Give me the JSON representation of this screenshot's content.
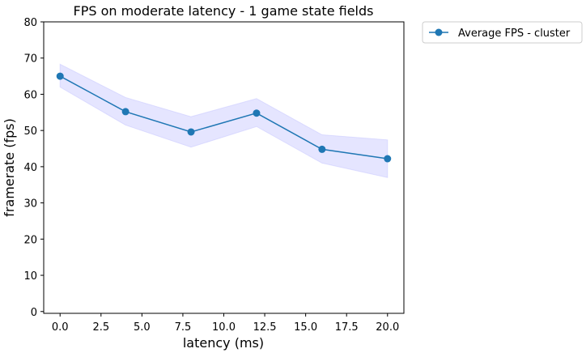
{
  "chart_data": {
    "type": "line",
    "title": "FPS on moderate latency - 1 game state fields",
    "xlabel": "latency (ms)",
    "ylabel": "framerate (fps)",
    "xlim": [
      -1,
      21
    ],
    "ylim": [
      -0.5,
      80
    ],
    "xticks": [
      0,
      2.5,
      5,
      7.5,
      10,
      12.5,
      15,
      17.5,
      20
    ],
    "xtick_labels": [
      "0.0",
      "2.5",
      "5.0",
      "7.5",
      "10.0",
      "12.5",
      "15.0",
      "17.5",
      "20.0"
    ],
    "yticks": [
      0,
      10,
      20,
      30,
      40,
      50,
      60,
      70,
      80
    ],
    "ytick_labels": [
      "0",
      "10",
      "20",
      "30",
      "40",
      "50",
      "60",
      "70",
      "80"
    ],
    "grid": false,
    "legend_position": "outside-top-right",
    "series": [
      {
        "name": "Average FPS - cluster",
        "color": "#1f77b4",
        "marker": "circle",
        "x": [
          0,
          4,
          8,
          12,
          16,
          20
        ],
        "y": [
          65,
          55.2,
          49.6,
          54.8,
          44.8,
          42.2
        ],
        "band_lower": [
          62,
          51.5,
          45.4,
          51.1,
          41,
          37
        ],
        "band_upper": [
          68.3,
          59.1,
          53.8,
          58.8,
          48.8,
          47.4
        ],
        "band_color": "#ccccff"
      }
    ]
  }
}
